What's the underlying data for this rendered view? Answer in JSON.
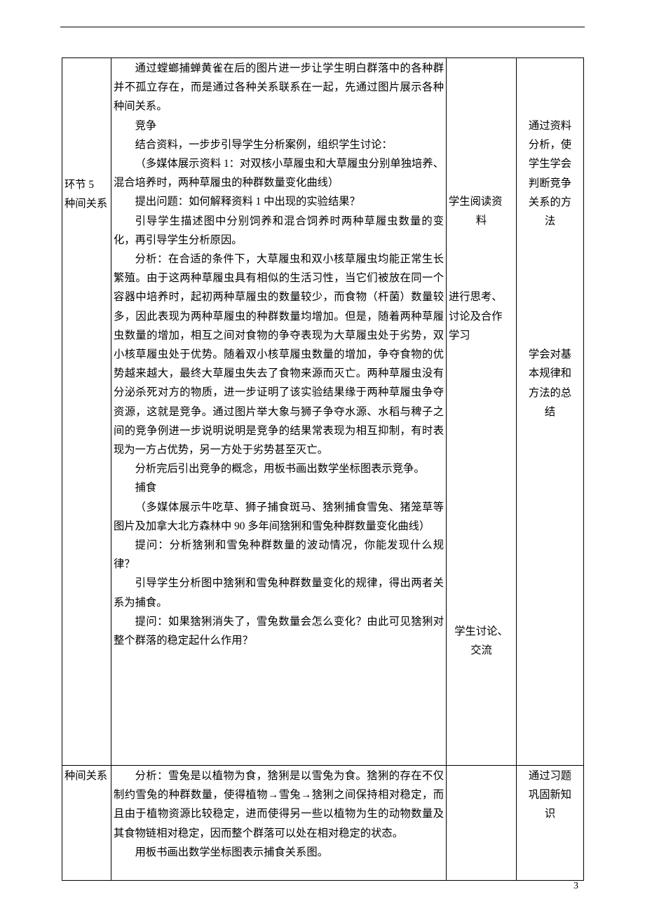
{
  "page": {
    "number": "3"
  },
  "rows": [
    {
      "col1_lines": [
        "环节 5",
        "种间关系"
      ],
      "col2_paragraphs": [
        {
          "cls": "indent",
          "text": "通过螳螂捕蝉黄雀在后的图片进一步让学生明白群落中的各种群并不孤立存在，而是通过各种关系联系在一起，先通过图片展示各种种间关系。"
        },
        {
          "cls": "indent",
          "text": "竞争"
        },
        {
          "cls": "indent",
          "text": "结合资料，一步步引导学生分析案例，组织学生讨论："
        },
        {
          "cls": "indent",
          "text": "（多媒体展示资料 1：对双核小草履虫和大草履虫分别单独培养、混合培养时，两种草履虫的种群数量变化曲线）"
        },
        {
          "cls": "indent",
          "text": "提出问题：如何解释资料 1 中出现的实验结果？"
        },
        {
          "cls": "indent",
          "text": "引导学生描述图中分别饲养和混合饲养时两种草履虫数量的变化，再引导学生分析原因。"
        },
        {
          "cls": "indent",
          "text": "分析：在合适的条件下，大草履虫和双小核草履虫均能正常生长繁殖。由于这两种草履虫具有相似的生活习性，当它们被放在同一个容器中培养时，起初两种草履虫的数量较少，而食物（杆菌）数量较多，因此表现为两种草履虫的种群数量均增加。但是，随着两种草履虫数量的增加，相互之间对食物的争夺表现为大草履虫处于劣势，双小核草履虫处于优势。随着双小核草履虫数量的增加，争夺食物的优势越来越大，最终大草履虫失去了食物来源而灭亡。两种草履虫没有分泌杀死对方的物质，进一步证明了该实验结果缘于两种草履虫争夺资源，这就是竞争。通过图片举大象与狮子争夺水源、水稻与稗子之间的竞争例进一步说明说明是竞争的结果常表现为相互抑制，有时表现为一方占优势，另一方处于劣势甚至灭亡。"
        },
        {
          "cls": "indent",
          "text": "分析完后引出竞争的概念，用板书画出数学坐标图表示竞争。"
        },
        {
          "cls": "indent",
          "text": "捕食"
        },
        {
          "cls": "indent",
          "text": "（多媒体展示牛吃草、狮子捕食斑马、猞猁捕食雪兔、猪笼草等图片及加拿大北方森林中 90 多年间猞猁和雪兔种群数量变化曲线）"
        },
        {
          "cls": "indent",
          "text": "提问：分析猞猁和雪兔种群数量的波动情况，你能发现什么规律？"
        },
        {
          "cls": "indent",
          "text": "引导学生分析图中猞猁和雪兔种群数量变化的规律，得出两者关系为捕食。"
        },
        {
          "cls": "indent",
          "text": "提问：如果猞猁消失了，雪兔数量会怎么变化？由此可见猞猁对整个群落的稳定起什么作用？"
        }
      ],
      "col3_blocks": [
        {
          "top_pad": 7,
          "lines": [
            "学生阅读资",
            "料"
          ],
          "align": "center"
        },
        {
          "top_pad": 3,
          "lines": [
            "进行思考、",
            "讨论及合作",
            "学习"
          ],
          "align": "left"
        },
        {
          "top_pad": 15,
          "lines": [
            "学生讨论、",
            "交流"
          ],
          "align": "center"
        }
      ],
      "col4_blocks": [
        {
          "top_pad": 3,
          "lines": [
            "通过资料",
            "分析，使",
            "学生学会",
            "判断竞争",
            "关系的方",
            "法"
          ],
          "align": "center"
        },
        {
          "top_pad": 6,
          "lines": [
            "学会对基",
            "本规律和",
            "方法的总",
            "结"
          ],
          "align": "center"
        }
      ]
    },
    {
      "col1_lines": [
        "种间关系"
      ],
      "col2_paragraphs": [
        {
          "cls": "indent",
          "text": "分析：雪兔是以植物为食，猞猁是以雪兔为食。猞猁的存在不仅制约雪兔的种群数量，使得植物→雪兔→猞猁之间保持相对稳定，而且由于植物资源比较稳定，进而使得另一些以植物为生的动物数量及其食物链相对稳定，因而整个群落可以处在相对稳定的状态。"
        },
        {
          "cls": "indent",
          "text": "用板书画出数学坐标图表示捕食关系图。"
        }
      ],
      "col3_blocks": [],
      "col4_blocks": [
        {
          "top_pad": 0,
          "lines": [
            "通过习题",
            "巩固新知",
            "识"
          ],
          "align": "center"
        }
      ]
    }
  ]
}
